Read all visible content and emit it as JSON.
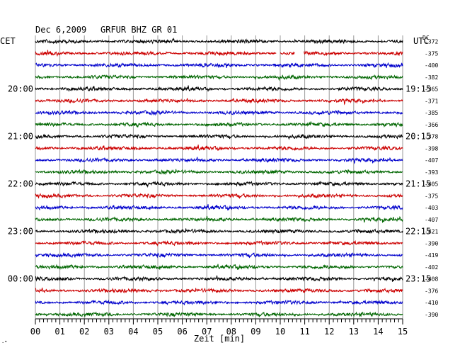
{
  "header": {
    "date": "Dec 6,2009",
    "station": "GRFUR BHZ GR 01",
    "left_tz": "CET",
    "right_tz": "UTC",
    "dc_label": "DC"
  },
  "footer": {
    "xlabel": "Zeit [min]",
    "corner_mark": "·\""
  },
  "chart_data": {
    "type": "line",
    "title": "Dec 6,2009   GRFUR BHZ GR 01",
    "xlabel": "Zeit [min]",
    "xlim": [
      0,
      15
    ],
    "x_ticks": [
      "00",
      "01",
      "02",
      "03",
      "04",
      "05",
      "06",
      "07",
      "08",
      "09",
      "10",
      "11",
      "12",
      "13",
      "14",
      "15"
    ],
    "left_time_labels": [
      {
        "row": 4,
        "text": "20:00"
      },
      {
        "row": 8,
        "text": "21:00"
      },
      {
        "row": 12,
        "text": "22:00"
      },
      {
        "row": 16,
        "text": "23:00"
      },
      {
        "row": 20,
        "text": "00:00"
      }
    ],
    "right_time_labels": [
      {
        "row": 4,
        "text": "19:15"
      },
      {
        "row": 8,
        "text": "20:15"
      },
      {
        "row": 12,
        "text": "21:15"
      },
      {
        "row": 16,
        "text": "22:15"
      },
      {
        "row": 20,
        "text": "23:15"
      }
    ],
    "dc_offsets": [
      "-372",
      "-375",
      "-400",
      "-382",
      "-365",
      "-371",
      "-385",
      "-366",
      "-378",
      "-398",
      "-407",
      "-393",
      "-405",
      "-375",
      "-403",
      "-407",
      "-421",
      "-390",
      "-419",
      "-402",
      "-408",
      "-376",
      "-410",
      "-390"
    ],
    "trace_colors": [
      "#000000",
      "#cc0000",
      "#0000cc",
      "#006600"
    ],
    "gaps": [
      {
        "row": 1,
        "from_min": 9.85,
        "to_min": 10.0
      },
      {
        "row": 1,
        "from_min": 10.6,
        "to_min": 10.95
      }
    ],
    "grid": true
  }
}
